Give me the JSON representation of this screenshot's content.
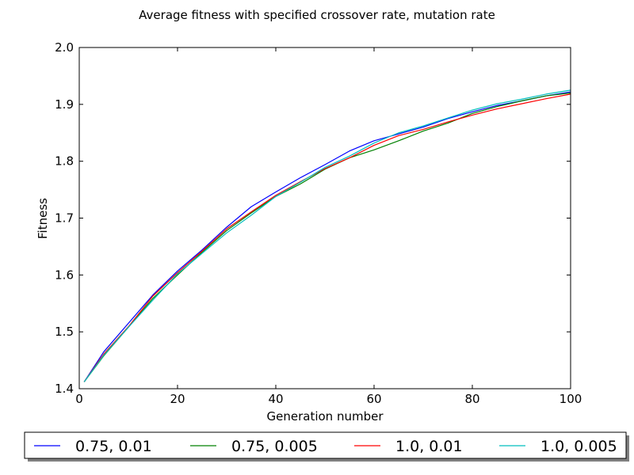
{
  "chart_data": {
    "type": "line",
    "title": "Average fitness with specified crossover rate, mutation rate",
    "xlabel": "Generation number",
    "ylabel": "Fitness",
    "xlim": [
      0,
      100
    ],
    "ylim": [
      1.4,
      2.0
    ],
    "xticks": [
      {
        "value": 0,
        "label": "0"
      },
      {
        "value": 20,
        "label": "20"
      },
      {
        "value": 40,
        "label": "40"
      },
      {
        "value": 60,
        "label": "60"
      },
      {
        "value": 80,
        "label": "80"
      },
      {
        "value": 100,
        "label": "100"
      }
    ],
    "yticks": [
      {
        "value": 1.4,
        "label": "1.4"
      },
      {
        "value": 1.5,
        "label": "1.5"
      },
      {
        "value": 1.6,
        "label": "1.6"
      },
      {
        "value": 1.7,
        "label": "1.7"
      },
      {
        "value": 1.8,
        "label": "1.8"
      },
      {
        "value": 1.9,
        "label": "1.9"
      },
      {
        "value": 2.0,
        "label": "2.0"
      }
    ],
    "grid": false,
    "legend_position": "bottom, below plot, horizontal, boxed with shadow",
    "x": [
      1,
      5,
      10,
      15,
      20,
      25,
      30,
      35,
      40,
      45,
      50,
      55,
      60,
      65,
      70,
      75,
      80,
      85,
      90,
      95,
      100
    ],
    "series": [
      {
        "name": "0.75, 0.01",
        "color": "#0000ff",
        "values": [
          1.412,
          1.465,
          1.515,
          1.565,
          1.607,
          1.644,
          1.684,
          1.72,
          1.746,
          1.771,
          1.794,
          1.818,
          1.836,
          1.848,
          1.86,
          1.875,
          1.887,
          1.898,
          1.906,
          1.915,
          1.922
        ]
      },
      {
        "name": "0.75, 0.005",
        "color": "#008000",
        "values": [
          1.412,
          1.458,
          1.508,
          1.559,
          1.6,
          1.64,
          1.678,
          1.709,
          1.738,
          1.76,
          1.786,
          1.806,
          1.82,
          1.836,
          1.853,
          1.867,
          1.884,
          1.896,
          1.906,
          1.915,
          1.92
        ]
      },
      {
        "name": "1.0, 0.01",
        "color": "#ff0000",
        "values": [
          1.412,
          1.461,
          1.509,
          1.563,
          1.604,
          1.642,
          1.681,
          1.711,
          1.74,
          1.764,
          1.787,
          1.806,
          1.828,
          1.845,
          1.856,
          1.869,
          1.881,
          1.892,
          1.901,
          1.91,
          1.918
        ]
      },
      {
        "name": "1.0, 0.005",
        "color": "#00bfbf",
        "values": [
          1.412,
          1.459,
          1.508,
          1.556,
          1.602,
          1.638,
          1.674,
          1.705,
          1.738,
          1.763,
          1.789,
          1.809,
          1.832,
          1.85,
          1.862,
          1.876,
          1.89,
          1.901,
          1.909,
          1.918,
          1.925
        ]
      }
    ]
  }
}
